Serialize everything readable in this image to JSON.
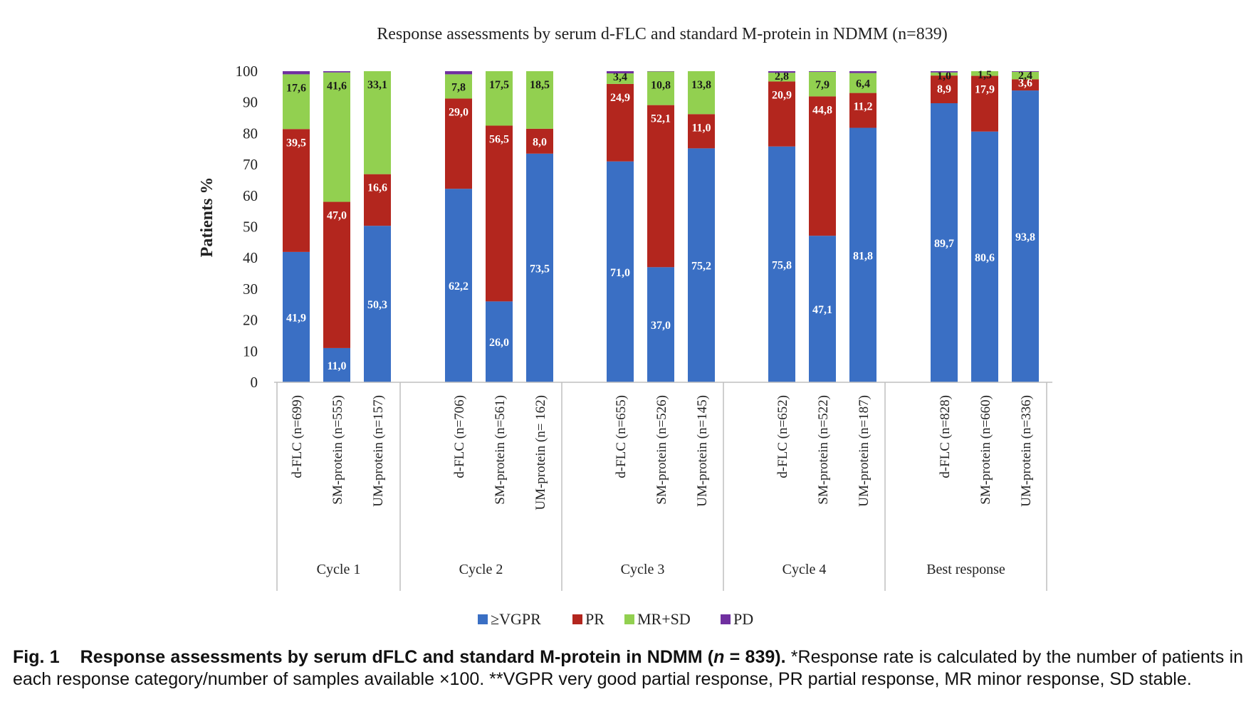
{
  "chart_data": {
    "type": "bar",
    "stacked": true,
    "title": "Response assessments by serum d-FLC and standard M-protein in NDMM (n=839)",
    "ylabel": "Patients %",
    "ylim": [
      0,
      100
    ],
    "yticks": [
      "0",
      "10",
      "20",
      "30",
      "40",
      "50",
      "60",
      "70",
      "80",
      "90",
      "100"
    ],
    "grid": false,
    "legend_position": "bottom",
    "groups": [
      {
        "label": "Cycle 1",
        "categories": [
          "d-FLC (n=699)",
          "SM-protein (n=555)",
          "UM-protein (n=157)"
        ]
      },
      {
        "label": "Cycle 2",
        "categories": [
          "d-FLC (n=706)",
          "SM-protein (n=561)",
          "UM-protein (n= 162)"
        ]
      },
      {
        "label": "Cycle 3",
        "categories": [
          "d-FLC (n=655)",
          "SM-protein (n=526)",
          "UM-protein (n=145)"
        ]
      },
      {
        "label": "Cycle 4",
        "categories": [
          "d-FLC (n=652)",
          "SM-protein (n=522)",
          "UM-protein (n=187)"
        ]
      },
      {
        "label": "Best response",
        "categories": [
          "d-FLC (n=828)",
          "SM-protein (n=660)",
          "UM-protein (n=336)"
        ]
      }
    ],
    "series": [
      {
        "name": "≥VGPR",
        "color": "#3a6fc4",
        "values": [
          41.9,
          11.0,
          50.3,
          62.2,
          26.0,
          73.5,
          71.0,
          37.0,
          75.2,
          75.8,
          47.1,
          81.8,
          89.7,
          80.6,
          93.8
        ],
        "labels": [
          "41,9",
          "11,0",
          "50,3",
          "62,2",
          "26,0",
          "73,5",
          "71,0",
          "37,0",
          "75,2",
          "75,8",
          "47,1",
          "81,8",
          "89,7",
          "80,6",
          "93,8"
        ]
      },
      {
        "name": "PR",
        "color": "#b3261e",
        "values": [
          39.5,
          47.0,
          16.6,
          29.0,
          56.5,
          8.0,
          24.9,
          52.1,
          11.0,
          20.9,
          44.8,
          11.2,
          8.9,
          17.9,
          3.6
        ],
        "labels": [
          "39,5",
          "47,0",
          "16,6",
          "29,0",
          "56,5",
          "8,0",
          "24,9",
          "52,1",
          "11,0",
          "20,9",
          "44,8",
          "11,2",
          "8,9",
          "17,9",
          "3,6"
        ]
      },
      {
        "name": "MR+SD",
        "color": "#92d050",
        "values": [
          17.6,
          41.6,
          33.1,
          7.8,
          17.5,
          18.5,
          3.4,
          10.8,
          13.8,
          2.8,
          7.9,
          6.4,
          1.0,
          1.5,
          2.4
        ],
        "labels": [
          "17,6",
          "41,6",
          "33,1",
          "7,8",
          "17,5",
          "18,5",
          "3,4",
          "10,8",
          "13,8",
          "2,8",
          "7,9",
          "6,4",
          "1,0",
          "1,5",
          "2,4"
        ]
      },
      {
        "name": "PD",
        "color": "#7030a0",
        "values": [
          1.0,
          0.4,
          0.0,
          1.0,
          0.0,
          0.0,
          0.7,
          0.1,
          0.0,
          0.5,
          0.2,
          0.6,
          0.4,
          0.0,
          0.2
        ],
        "labels": [
          "",
          "",
          "",
          "",
          "",
          "",
          "",
          "",
          "",
          "",
          "",
          "",
          "",
          "",
          ""
        ]
      }
    ]
  },
  "caption": {
    "figure_label": "Fig. 1",
    "heading_before_n": "Response assessments by serum dFLC and standard M-protein in NDMM (",
    "n_symbol": "n",
    "heading_after_n": " = 839).",
    "body": " *Response rate is calculated by the number of patients in each response category/number of samples available ×100. **VGPR very good partial response, PR partial response, MR minor response, SD stable."
  }
}
